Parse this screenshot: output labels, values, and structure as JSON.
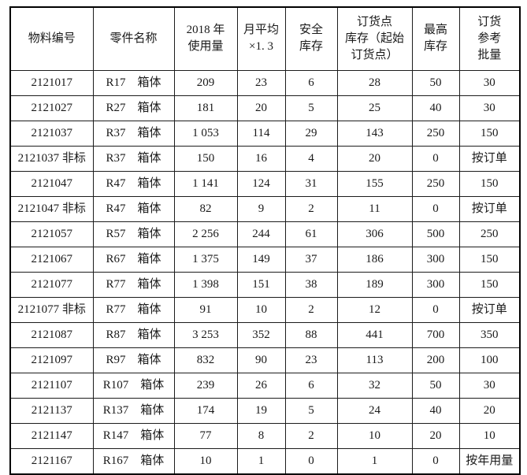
{
  "colors": {
    "background": "#ffffff",
    "border": "#000000",
    "text": "#1a1a1a"
  },
  "table": {
    "headers": [
      {
        "lines": [
          "物料编号"
        ]
      },
      {
        "lines": [
          "零件名称"
        ]
      },
      {
        "lines": [
          "2018 年",
          "使用量"
        ]
      },
      {
        "lines": [
          "月平均",
          "×1. 3"
        ]
      },
      {
        "lines": [
          "安全",
          "库存"
        ]
      },
      {
        "lines": [
          "订货点",
          "库存（起始",
          "订货点）"
        ]
      },
      {
        "lines": [
          "最高",
          "库存"
        ]
      },
      {
        "lines": [
          "订货",
          "参考",
          "批量"
        ]
      }
    ],
    "rows": [
      [
        "2121017",
        "R17　箱体",
        "209",
        "23",
        "6",
        "28",
        "50",
        "30"
      ],
      [
        "2121027",
        "R27　箱体",
        "181",
        "20",
        "5",
        "25",
        "40",
        "30"
      ],
      [
        "2121037",
        "R37　箱体",
        "1 053",
        "114",
        "29",
        "143",
        "250",
        "150"
      ],
      [
        "2121037 非标",
        "R37　箱体",
        "150",
        "16",
        "4",
        "20",
        "0",
        "按订单"
      ],
      [
        "2121047",
        "R47　箱体",
        "1 141",
        "124",
        "31",
        "155",
        "250",
        "150"
      ],
      [
        "2121047 非标",
        "R47　箱体",
        "82",
        "9",
        "2",
        "11",
        "0",
        "按订单"
      ],
      [
        "2121057",
        "R57　箱体",
        "2 256",
        "244",
        "61",
        "306",
        "500",
        "250"
      ],
      [
        "2121067",
        "R67　箱体",
        "1 375",
        "149",
        "37",
        "186",
        "300",
        "150"
      ],
      [
        "2121077",
        "R77　箱体",
        "1 398",
        "151",
        "38",
        "189",
        "300",
        "150"
      ],
      [
        "2121077 非标",
        "R77　箱体",
        "91",
        "10",
        "2",
        "12",
        "0",
        "按订单"
      ],
      [
        "2121087",
        "R87　箱体",
        "3 253",
        "352",
        "88",
        "441",
        "700",
        "350"
      ],
      [
        "2121097",
        "R97　箱体",
        "832",
        "90",
        "23",
        "113",
        "200",
        "100"
      ],
      [
        "2121107",
        "R107　箱体",
        "239",
        "26",
        "6",
        "32",
        "50",
        "30"
      ],
      [
        "2121137",
        "R137　箱体",
        "174",
        "19",
        "5",
        "24",
        "40",
        "20"
      ],
      [
        "2121147",
        "R147　箱体",
        "77",
        "8",
        "2",
        "10",
        "20",
        "10"
      ],
      [
        "2121167",
        "R167　箱体",
        "10",
        "1",
        "0",
        "1",
        "0",
        "按年用量"
      ]
    ]
  }
}
